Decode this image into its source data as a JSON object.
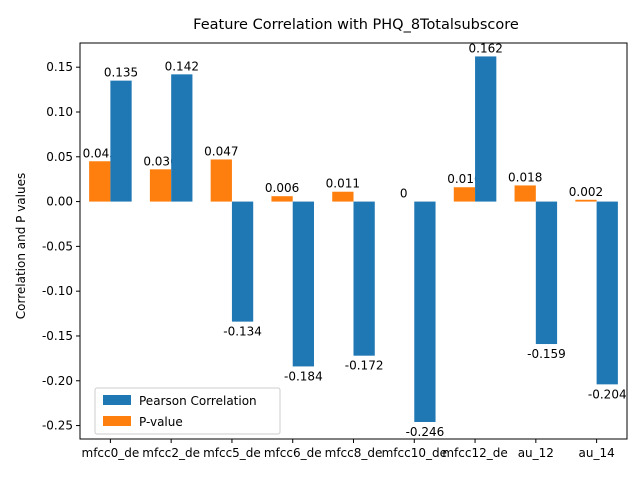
{
  "chart_data": {
    "type": "bar",
    "title": "Feature Correlation with PHQ_8Totalsubscore",
    "xlabel": "",
    "ylabel": "Correlation and P values",
    "ylim": [
      -0.265,
      0.177
    ],
    "yticks": [
      -0.25,
      -0.2,
      -0.15,
      -0.1,
      -0.05,
      0.0,
      0.05,
      0.1,
      0.15
    ],
    "ytick_labels": [
      "-0.25",
      "-0.20",
      "-0.15",
      "-0.10",
      "-0.05",
      "0.00",
      "0.05",
      "0.10",
      "0.15"
    ],
    "categories": [
      "mfcc0_de",
      "mfcc2_de",
      "mfcc5_de",
      "mfcc6_de",
      "mfcc8_de",
      "mfcc10_de",
      "mfcc12_de",
      "au_12",
      "au_14"
    ],
    "series": [
      {
        "name": "Pearson Correlation",
        "color": "#1f77b4",
        "values": [
          0.135,
          0.142,
          -0.134,
          -0.184,
          -0.172,
          -0.246,
          0.162,
          -0.159,
          -0.204
        ],
        "labels": [
          "0.135",
          "0.142",
          "-0.134",
          "-0.184",
          "-0.172",
          "-0.246",
          "0.162",
          "-0.159",
          "-0.204"
        ]
      },
      {
        "name": "P-value",
        "color": "#ff7f0e",
        "values": [
          0.045,
          0.036,
          0.047,
          0.006,
          0.011,
          0.0,
          0.016,
          0.018,
          0.002
        ],
        "labels": [
          "0.045",
          "0.036",
          "0.047",
          "0.006",
          "0.011",
          "0",
          "0.016",
          "0.018",
          "0.002"
        ]
      }
    ],
    "legend": {
      "placement": "lower-left",
      "entries": [
        "Pearson Correlation",
        "P-value"
      ]
    },
    "grid": false
  }
}
